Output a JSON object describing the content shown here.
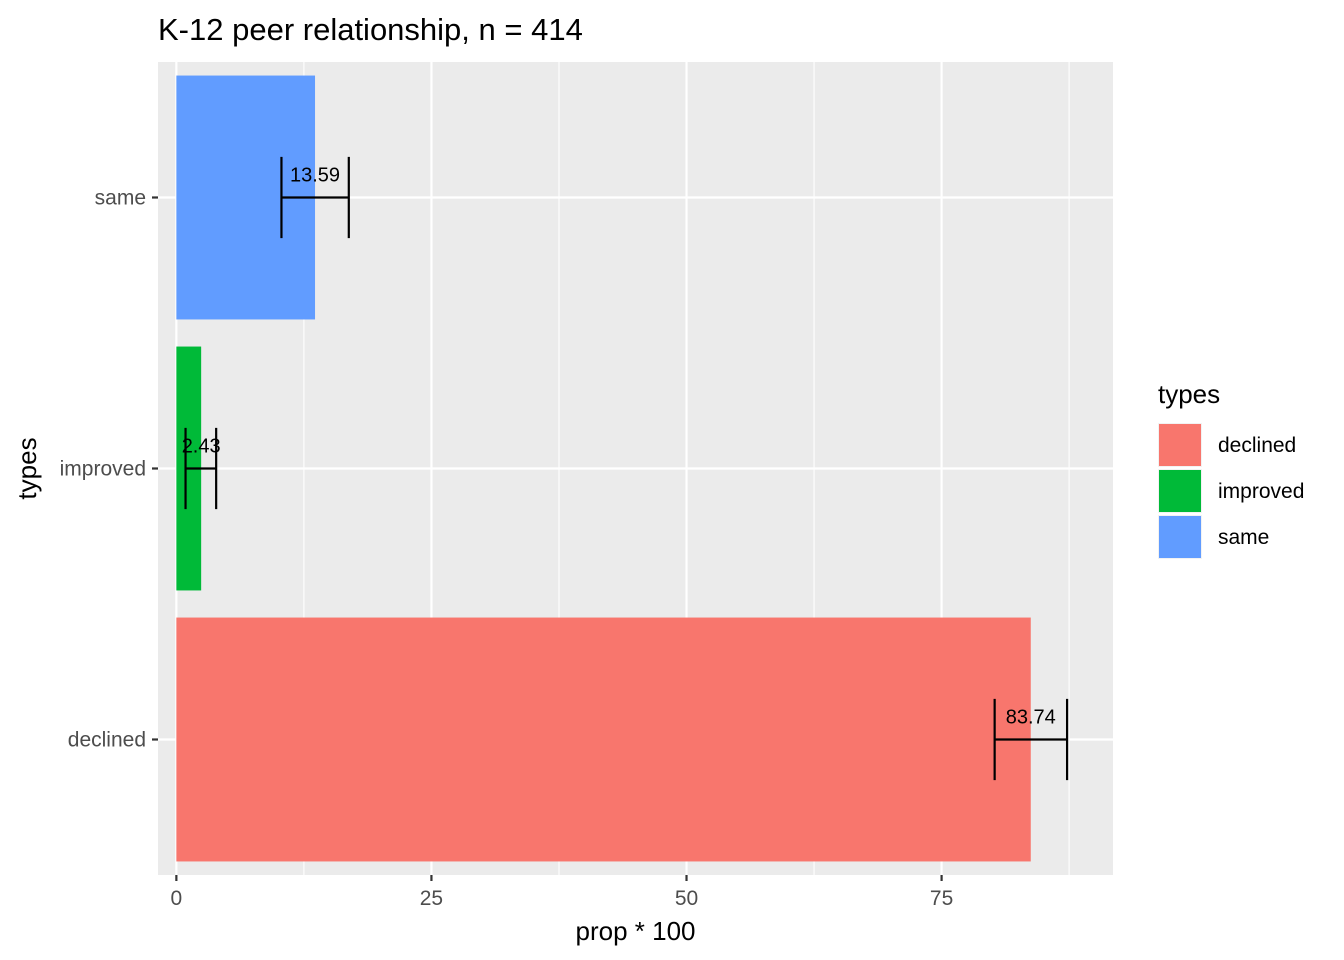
{
  "chart_data": {
    "type": "bar",
    "orientation": "horizontal",
    "title": "K-12 peer relationship, n = 414",
    "xlabel": "prop * 100",
    "ylabel": "types",
    "categories": [
      "declined",
      "improved",
      "same"
    ],
    "values": [
      83.74,
      2.43,
      13.59
    ],
    "value_labels": [
      "83.74",
      "2.43",
      "13.59"
    ],
    "error_bars": [
      {
        "category": "declined",
        "lower": 80.2,
        "upper": 87.3
      },
      {
        "category": "improved",
        "lower": 0.9,
        "upper": 3.9
      },
      {
        "category": "same",
        "lower": 10.3,
        "upper": 16.9
      }
    ],
    "colors": {
      "declined": "#F8766D",
      "improved": "#00BA38",
      "same": "#619CFF"
    },
    "xlim": [
      -1.8,
      91.8
    ],
    "xticks": [
      0,
      25,
      50,
      75
    ],
    "xtick_labels": [
      "0",
      "25",
      "50",
      "75"
    ],
    "grid": true,
    "panel_background": "#EBEBEB",
    "legend": {
      "title": "types",
      "position": "right",
      "entries": [
        "declined",
        "improved",
        "same"
      ]
    }
  }
}
